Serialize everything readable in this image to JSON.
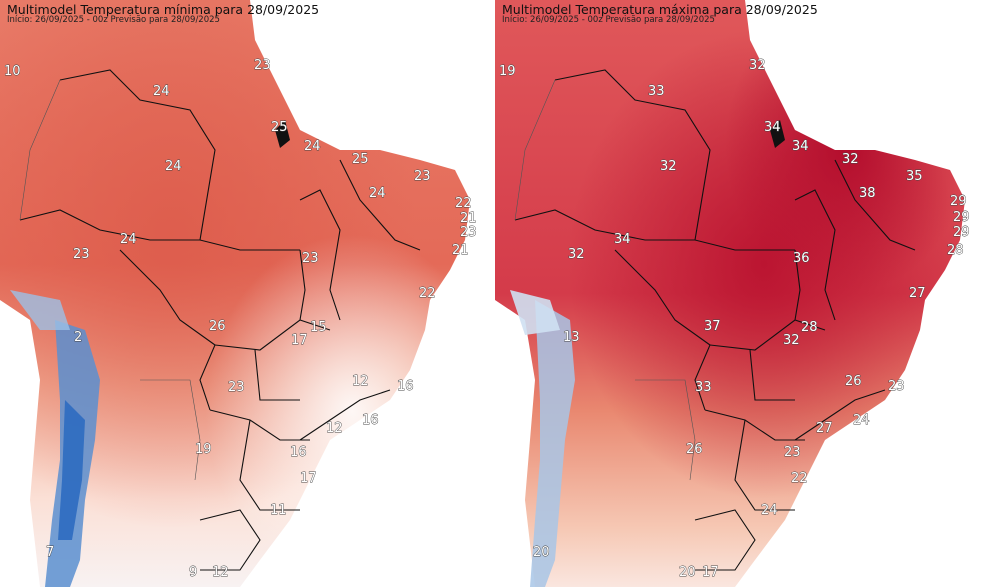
{
  "panels": [
    {
      "id": "min",
      "title": "Multimodel Temperatura mínima para 28/09/2025",
      "subtitle": "Início: 26/09/2025 - 00z  Previsão para 28/09/2025",
      "labels": [
        "10",
        "24",
        "23",
        "25",
        "24",
        "24",
        "25",
        "24",
        "23",
        "22",
        "21",
        "23",
        "24",
        "23",
        "21",
        "23",
        "22",
        "2",
        "26",
        "17",
        "15",
        "12",
        "16",
        "23",
        "19",
        "12",
        "16",
        "16",
        "17",
        "11",
        "7",
        "9",
        "12"
      ]
    },
    {
      "id": "max",
      "title": "Multimodel Temperatura máxima para 28/09/2025",
      "subtitle": "Início: 26/09/2025 - 00z  Previsão para 28/09/2025",
      "labels": [
        "19",
        "32",
        "33",
        "34",
        "34",
        "32",
        "32",
        "35",
        "38",
        "29",
        "29",
        "29",
        "34",
        "32",
        "28",
        "36",
        "27",
        "13",
        "37",
        "28",
        "32",
        "26",
        "23",
        "33",
        "24",
        "27",
        "26",
        "23",
        "22",
        "24",
        "20",
        "20",
        "17"
      ]
    }
  ],
  "colors": {
    "min_background": "#e46a58",
    "max_background": "#d72c44",
    "cold_blue": "#2d6cc0",
    "borders": "#111111"
  }
}
